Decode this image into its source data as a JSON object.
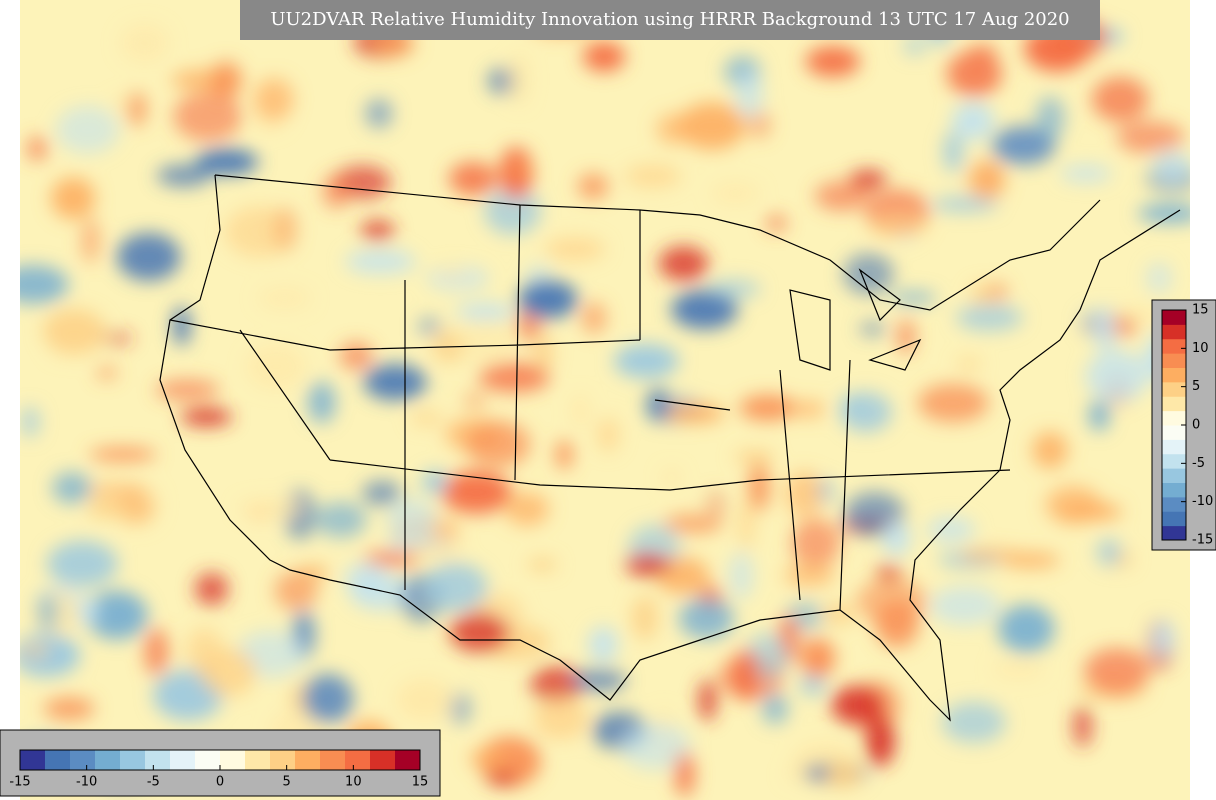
{
  "title": "UU2DVAR Relative Humidity Innovation using HRRR Background 13 UTC 17 Aug 2020",
  "colorbar_right": {
    "range": [
      -15,
      15
    ],
    "ticks": [
      15,
      10,
      5,
      0,
      -5,
      -10,
      -15
    ],
    "colors": [
      "#313695",
      "#4575b4",
      "#5b8cc2",
      "#74add1",
      "#98c7e0",
      "#c2e2ee",
      "#e4f3f8",
      "#fbfdf4",
      "#fffbe0",
      "#fee8a8",
      "#fdd086",
      "#fdae61",
      "#f88d52",
      "#f46d43",
      "#d73027",
      "#a50026"
    ]
  },
  "colorbar_bottom": {
    "range": [
      -15,
      15
    ],
    "ticks": [
      -15,
      -10,
      -5,
      0,
      5,
      10,
      15
    ],
    "colors": [
      "#313695",
      "#4575b4",
      "#5b8cc2",
      "#74add1",
      "#98c7e0",
      "#c2e2ee",
      "#e4f3f8",
      "#fbfdf4",
      "#fffbe0",
      "#fee8a8",
      "#fdd086",
      "#fdae61",
      "#f88d52",
      "#f46d43",
      "#d73027",
      "#a50026"
    ]
  }
}
